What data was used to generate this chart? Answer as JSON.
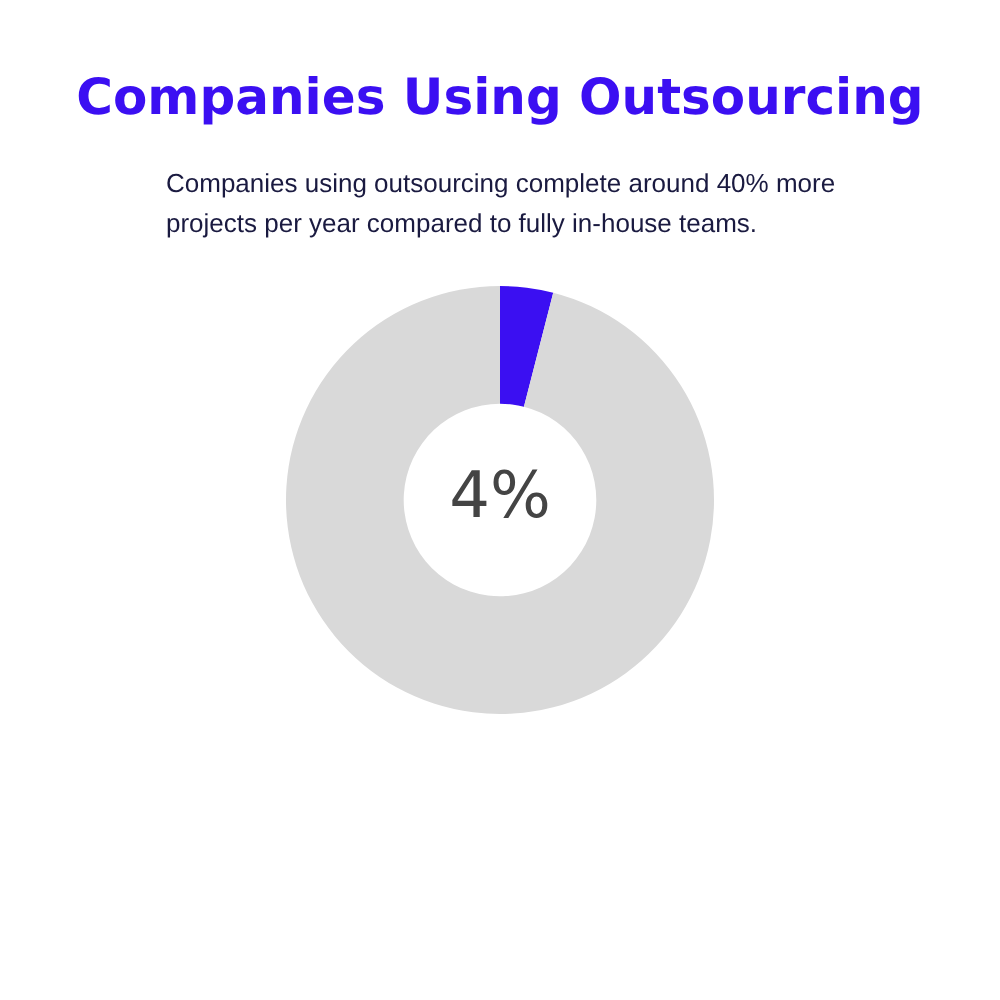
{
  "chart_data": {
    "type": "donut",
    "title": "Companies Using Outsourcing",
    "subtitle": "Companies using outsourcing complete around 40% more projects per year compared to fully in-house teams.",
    "categories": [
      null,
      null
    ],
    "values": [
      4,
      96
    ],
    "colors": [
      "#3b0ff2",
      "#d9d9d9"
    ],
    "value_labels": [
      "4%",
      null
    ],
    "legend": false
  }
}
